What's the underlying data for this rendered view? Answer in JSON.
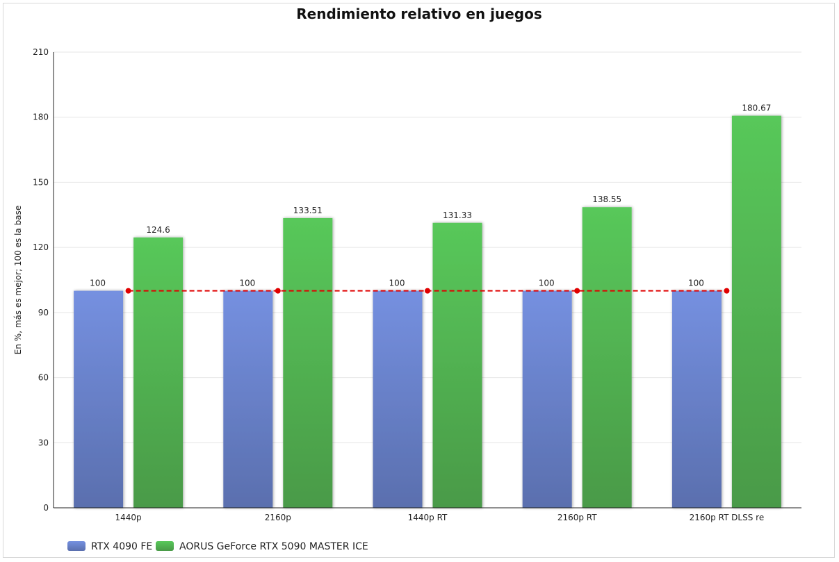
{
  "chart_data": {
    "type": "bar",
    "title": "Rendimiento relativo en juegos",
    "xlabel": "",
    "ylabel": "En %, más es mejor; 100 es la base",
    "ylim": [
      0,
      210
    ],
    "yticks": [
      0,
      30,
      60,
      90,
      120,
      150,
      180,
      210
    ],
    "categories": [
      "1440p",
      "2160p",
      "1440p RT",
      "2160p RT",
      "2160p RT DLSS re"
    ],
    "series": [
      {
        "name": "RTX 4090 FE",
        "values": [
          100,
          100,
          100,
          100,
          100
        ],
        "labels": [
          "100",
          "100",
          "100",
          "100",
          "100"
        ],
        "color_top": "#7590e0",
        "color_bottom": "#5a6fae"
      },
      {
        "name": "AORUS GeForce RTX 5090 MASTER ICE",
        "values": [
          124.6,
          133.51,
          131.33,
          138.55,
          180.67
        ],
        "labels": [
          "124.6",
          "133.51",
          "131.33",
          "138.55",
          "180.67"
        ],
        "color_top": "#58c85a",
        "color_bottom": "#4a9a48"
      }
    ],
    "baseline": {
      "value": 100,
      "style": "dashed",
      "color": "#e00000"
    },
    "grid": true,
    "legend_position": "bottom-left"
  }
}
